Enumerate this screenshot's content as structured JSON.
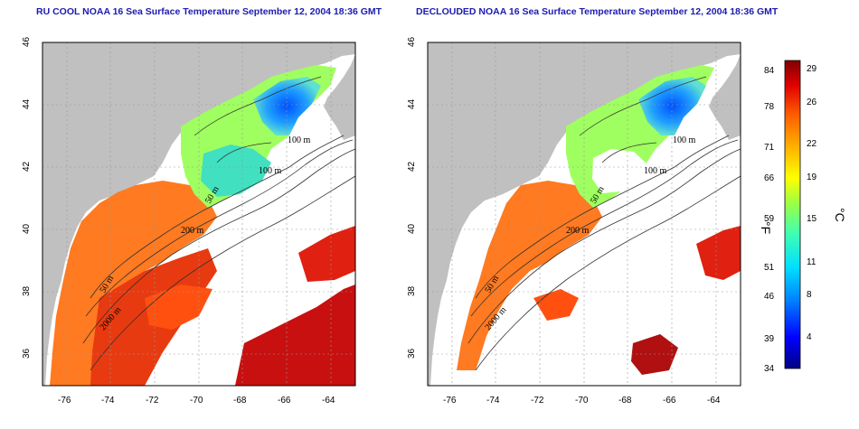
{
  "panels": [
    {
      "title": "RU COOL NOAA 16 Sea Surface Temperature September 12, 2004 18:36 GMT",
      "x_ticks": [
        "-76",
        "-74",
        "-72",
        "-70",
        "-68",
        "-66",
        "-64"
      ],
      "y_ticks": [
        "36",
        "38",
        "40",
        "42",
        "44",
        "46"
      ],
      "contour_labels": [
        "100 m",
        "100 m",
        "50 m",
        "200 m",
        "50 m",
        "2000 m"
      ]
    },
    {
      "title": "DECLOUDED NOAA 16 Sea Surface Temperature September 12, 2004 18:36 GMT",
      "x_ticks": [
        "-76",
        "-74",
        "-72",
        "-70",
        "-68",
        "-66",
        "-64"
      ],
      "y_ticks": [
        "36",
        "38",
        "40",
        "42",
        "44",
        "46"
      ],
      "contour_labels": [
        "100 m",
        "100 m",
        "50 m",
        "200 m",
        "50 m",
        "2000 m"
      ]
    }
  ],
  "colorbar": {
    "f_ticks": [
      "84",
      "78",
      "71",
      "66",
      "59",
      "51",
      "46",
      "39",
      "34"
    ],
    "c_ticks": [
      "29",
      "26",
      "22",
      "19",
      "15",
      "11",
      "8",
      "4"
    ],
    "f_label": "°F",
    "c_label": "°C",
    "colors": [
      "#000080",
      "#0000ff",
      "#0080ff",
      "#00e0ff",
      "#40ffb0",
      "#a0ff40",
      "#ffff00",
      "#ffb000",
      "#ff6000",
      "#e00000",
      "#800000"
    ]
  },
  "chart_data": {
    "type": "heatmap",
    "lon_range": [
      -77,
      -63
    ],
    "lat_range": [
      35,
      46
    ],
    "units": [
      "°F",
      "°C"
    ],
    "temperature_range_c": [
      1,
      30
    ]
  }
}
